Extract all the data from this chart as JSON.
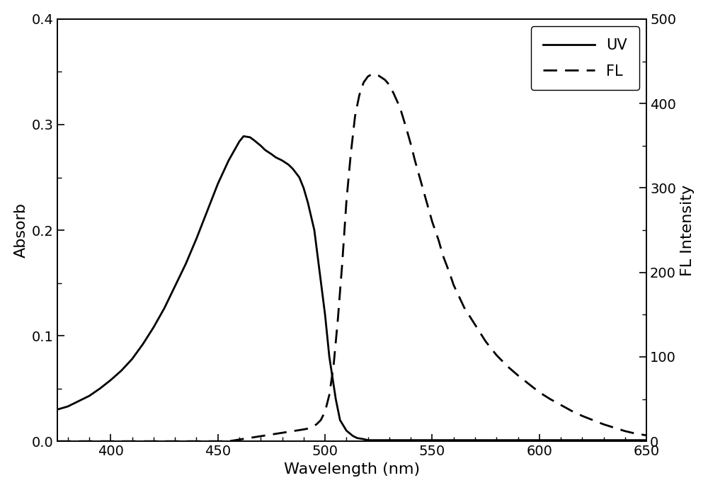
{
  "title": "",
  "xlabel": "Wavelength (nm)",
  "ylabel_left": "Absorb",
  "ylabel_right": "FL Intensity",
  "xlim": [
    375,
    650
  ],
  "ylim_left": [
    0.0,
    0.4
  ],
  "ylim_right": [
    0,
    500
  ],
  "xticks": [
    400,
    450,
    500,
    550,
    600,
    650
  ],
  "yticks_left": [
    0.0,
    0.1,
    0.2,
    0.3,
    0.4
  ],
  "yticks_right": [
    0,
    100,
    200,
    300,
    400,
    500
  ],
  "uv_color": "#000000",
  "fl_color": "#000000",
  "legend_labels": [
    "UV",
    "FL"
  ],
  "legend_loc": "upper right",
  "background_color": "#ffffff",
  "uv_x": [
    375,
    380,
    385,
    390,
    395,
    400,
    405,
    410,
    415,
    420,
    425,
    430,
    435,
    440,
    445,
    450,
    455,
    460,
    462,
    465,
    467,
    470,
    472,
    475,
    477,
    480,
    483,
    485,
    488,
    490,
    492,
    495,
    497,
    500,
    502,
    505,
    507,
    510,
    513,
    515,
    518,
    520,
    525,
    530,
    535,
    540,
    545,
    550,
    555,
    560,
    565,
    570,
    575,
    580,
    585,
    590,
    595,
    600,
    610,
    620,
    630,
    640,
    650
  ],
  "uv_y": [
    0.03,
    0.033,
    0.038,
    0.043,
    0.05,
    0.058,
    0.067,
    0.078,
    0.092,
    0.108,
    0.126,
    0.147,
    0.168,
    0.192,
    0.218,
    0.244,
    0.266,
    0.284,
    0.289,
    0.288,
    0.285,
    0.28,
    0.276,
    0.272,
    0.269,
    0.266,
    0.262,
    0.258,
    0.25,
    0.24,
    0.226,
    0.2,
    0.168,
    0.12,
    0.08,
    0.04,
    0.02,
    0.01,
    0.005,
    0.003,
    0.002,
    0.001,
    0.001,
    0.001,
    0.001,
    0.001,
    0.001,
    0.001,
    0.001,
    0.001,
    0.001,
    0.001,
    0.001,
    0.001,
    0.001,
    0.001,
    0.001,
    0.001,
    0.001,
    0.001,
    0.001,
    0.001,
    0.001
  ],
  "fl_x": [
    375,
    380,
    385,
    390,
    395,
    400,
    405,
    410,
    415,
    420,
    425,
    430,
    435,
    440,
    445,
    450,
    455,
    460,
    465,
    470,
    475,
    480,
    485,
    490,
    492,
    494,
    496,
    498,
    500,
    502,
    504,
    506,
    508,
    510,
    512,
    514,
    516,
    518,
    520,
    522,
    525,
    528,
    530,
    532,
    535,
    538,
    540,
    542,
    545,
    548,
    550,
    553,
    555,
    558,
    560,
    565,
    570,
    575,
    580,
    585,
    590,
    595,
    600,
    605,
    610,
    615,
    620,
    625,
    630,
    635,
    640,
    645,
    650
  ],
  "fl_y": [
    0,
    0,
    0,
    0,
    0,
    0,
    0,
    0,
    0,
    0,
    0,
    0,
    0,
    0,
    0,
    0,
    0,
    2,
    4,
    6,
    8,
    10,
    12,
    14,
    15,
    17,
    20,
    25,
    35,
    55,
    90,
    145,
    210,
    285,
    340,
    385,
    410,
    425,
    432,
    435,
    433,
    428,
    422,
    412,
    395,
    370,
    352,
    332,
    305,
    278,
    260,
    238,
    220,
    200,
    185,
    158,
    138,
    118,
    102,
    89,
    78,
    68,
    58,
    50,
    43,
    36,
    30,
    25,
    20,
    16,
    12,
    9,
    7
  ]
}
